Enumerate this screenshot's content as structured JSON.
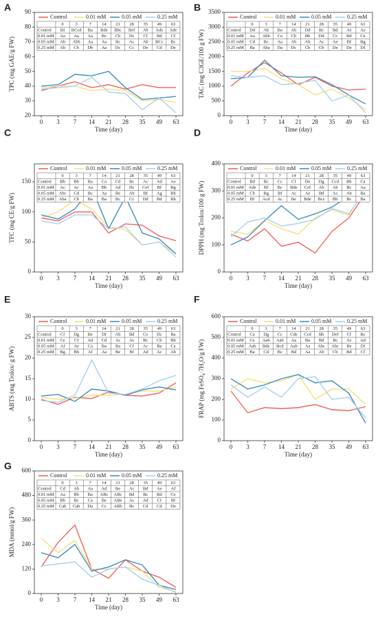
{
  "chart_data": [
    {
      "type": "line",
      "label": "A",
      "ylabel": "TPC (mg GAE/g FW)",
      "xlabel": "Time (day)",
      "categories": [
        "0",
        "3",
        "7",
        "14",
        "21",
        "28",
        "35",
        "49",
        "63"
      ],
      "ylim": [
        20,
        90
      ],
      "yticks": [
        20,
        30,
        40,
        50,
        60,
        70,
        80,
        90
      ],
      "series": [
        {
          "name": "Control",
          "color": "#f0625b",
          "values": [
            37,
            40,
            43,
            39,
            41,
            38,
            41,
            39,
            39
          ]
        },
        {
          "name": "0.01 mM",
          "color": "#f7df80",
          "values": [
            39,
            40,
            40,
            37,
            38,
            37,
            30,
            31,
            29
          ]
        },
        {
          "name": "0.05 mM",
          "color": "#3f8fc0",
          "values": [
            40,
            41,
            48,
            47,
            50,
            39,
            31,
            32,
            33
          ]
        },
        {
          "name": "0.25 mM",
          "color": "#a9d0ec",
          "values": [
            38,
            39,
            40,
            46,
            36,
            35,
            24,
            32,
            22
          ]
        }
      ],
      "letters": [
        [
          "Bf",
          "BCcd",
          "Ba",
          "Bde",
          "Bbc",
          "Bef",
          "Ab",
          "Ade",
          "Ade"
        ],
        [
          "Aa",
          "Aa",
          "Aa",
          "Bc",
          "Cb",
          "Dc",
          "Cf",
          "Bd",
          "Cf"
        ],
        [
          "Ab",
          "Abb",
          "Aa",
          "Aa",
          "Bc",
          "Ac",
          "Ab",
          "BCc",
          "Bc"
        ],
        [
          "Ab",
          "Cb",
          "Db",
          "Aa",
          "Dc",
          "Cc",
          "De",
          "Cd",
          "De"
        ]
      ]
    },
    {
      "type": "line",
      "label": "B",
      "ylabel": "TAC (mg C3GE/100 g FW)",
      "xlabel": "Time (day)",
      "categories": [
        "0",
        "3",
        "7",
        "14",
        "21",
        "28",
        "35",
        "49",
        "63"
      ],
      "ylim": [
        0,
        3500
      ],
      "yticks": [
        0,
        500,
        1000,
        1500,
        2000,
        2500,
        3000,
        3500
      ],
      "series": [
        {
          "name": "Control",
          "color": "#f0625b",
          "values": [
            1000,
            1450,
            1800,
            1450,
            1050,
            1300,
            1000,
            870,
            900
          ]
        },
        {
          "name": "0.01 mM",
          "color": "#f7df80",
          "values": [
            1500,
            1500,
            1600,
            1250,
            1050,
            700,
            900,
            600,
            200
          ]
        },
        {
          "name": "0.05 mM",
          "color": "#3f8fc0",
          "values": [
            1250,
            1300,
            1880,
            1350,
            1300,
            1320,
            1050,
            700,
            400
          ]
        },
        {
          "name": "0.25 mM",
          "color": "#a9d0ec",
          "values": [
            1350,
            1300,
            1350,
            1050,
            1100,
            1200,
            500,
            700,
            100
          ]
        }
      ],
      "letters": [
        [
          "Dd",
          "Ab",
          "Ba",
          "Ab",
          "Dd",
          "Bc",
          "Bd",
          "Ae",
          "Ae"
        ],
        [
          "Aa",
          "Abb",
          "Ca",
          "Cb",
          "Bb",
          "Dd",
          "Cc",
          "Bd",
          "Ce"
        ],
        [
          "Cd",
          "Bc",
          "Aa",
          "Ab",
          "Ab",
          "Ac",
          "Ae",
          "Bf",
          "Bg"
        ],
        [
          "Ba",
          "Aba",
          "Da",
          "Dc",
          "Cb",
          "Cb",
          "De",
          "De",
          "Df"
        ]
      ]
    },
    {
      "type": "line",
      "label": "C",
      "ylabel": "TFC (mg CE/g FW)",
      "xlabel": "Time (day)",
      "categories": [
        "0",
        "3",
        "7",
        "14",
        "21",
        "28",
        "35",
        "49",
        "63"
      ],
      "ylim": [
        0,
        180
      ],
      "yticks": [
        0,
        50,
        100,
        150
      ],
      "series": [
        {
          "name": "Control",
          "color": "#f0625b",
          "values": [
            90,
            85,
            100,
            100,
            65,
            80,
            78,
            60,
            52
          ]
        },
        {
          "name": "0.01 mM",
          "color": "#f7df80",
          "values": [
            90,
            100,
            120,
            105,
            75,
            70,
            45,
            50,
            30
          ]
        },
        {
          "name": "0.05 mM",
          "color": "#3f8fc0",
          "values": [
            95,
            88,
            105,
            140,
            72,
            125,
            65,
            55,
            30
          ]
        },
        {
          "name": "0.25 mM",
          "color": "#a9d0ec",
          "values": [
            85,
            80,
            95,
            95,
            72,
            75,
            45,
            50,
            25
          ]
        }
      ],
      "letters": [
        [
          "Bb",
          "Bb",
          "Ba",
          "Ca",
          "Cd",
          "Bc",
          "Ac",
          "Ad",
          "Ae"
        ],
        [
          "Ac",
          "Ac",
          "Aa",
          "Bb",
          "Ad",
          "Dc",
          "Cef",
          "Bf",
          "Bg"
        ],
        [
          "Abc",
          "Cd",
          "Bc",
          "Aa",
          "Be",
          "Ab",
          "Bf",
          "Ag",
          "Bh"
        ],
        [
          "Aba",
          "Cb",
          "Ba",
          "Ba",
          "Bc",
          "Cc",
          "Dd",
          "Bd",
          "Bh"
        ]
      ]
    },
    {
      "type": "line",
      "label": "D",
      "ylabel": "DPPH (mg Trolox/100 g FW)",
      "xlabel": "Time (day)",
      "categories": [
        "0",
        "3",
        "7",
        "14",
        "21",
        "28",
        "35",
        "49",
        "63"
      ],
      "ylim": [
        0,
        400
      ],
      "yticks": [
        0,
        100,
        200,
        300,
        400
      ],
      "series": [
        {
          "name": "Control",
          "color": "#f0625b",
          "values": [
            140,
            115,
            160,
            95,
            110,
            70,
            150,
            200,
            290
          ]
        },
        {
          "name": "0.01 mM",
          "color": "#f7df80",
          "values": [
            150,
            140,
            190,
            160,
            140,
            200,
            230,
            210,
            310
          ]
        },
        {
          "name": "0.05 mM",
          "color": "#3f8fc0",
          "values": [
            100,
            130,
            190,
            245,
            195,
            215,
            240,
            280,
            310
          ]
        },
        {
          "name": "0.25 mM",
          "color": "#a9d0ec",
          "values": [
            130,
            185,
            200,
            170,
            180,
            195,
            235,
            215,
            300
          ]
        }
      ],
      "letters": [
        [
          "Bd",
          "Bc",
          "Cc",
          "Cf",
          "De",
          "Dg",
          "Ccd",
          "Bb",
          "Ca"
        ],
        [
          "Ade",
          "Bf",
          "Bc",
          "Bde",
          "Cef",
          "Ab",
          "Ab",
          "Bc",
          "Aa"
        ],
        [
          "Cb",
          "Bg",
          "Bf",
          "Ac",
          "Ae",
          "Bd",
          "Ac",
          "Ab",
          "Ba"
        ],
        [
          "Bf",
          "Acd",
          "Ac",
          "Be",
          "Bde",
          "Bcc",
          "Bb",
          "Bc",
          "Ba"
        ]
      ]
    },
    {
      "type": "line",
      "label": "E",
      "ylabel": "ABTS (mg Trolox/ g FW)",
      "xlabel": "Time (day)",
      "categories": [
        "0",
        "3",
        "7",
        "14",
        "21",
        "28",
        "35",
        "49",
        "63"
      ],
      "ylim": [
        0,
        30
      ],
      "yticks": [
        0,
        5,
        10,
        15,
        20,
        25,
        30
      ],
      "series": [
        {
          "name": "Control",
          "color": "#f0625b",
          "values": [
            10,
            8.8,
            10.5,
            10.2,
            11.8,
            11,
            10.8,
            11.5,
            14
          ]
        },
        {
          "name": "0.01 mM",
          "color": "#f7df80",
          "values": [
            10.5,
            10,
            10.3,
            11,
            11,
            11.2,
            12,
            12,
            13
          ]
        },
        {
          "name": "0.05 mM",
          "color": "#3f8fc0",
          "values": [
            10.8,
            11.2,
            9.5,
            12.5,
            12,
            11,
            12.3,
            13,
            12.3
          ]
        },
        {
          "name": "0.25 mM",
          "color": "#a9d0ec",
          "values": [
            9.7,
            9.3,
            11,
            19.5,
            11.5,
            11.2,
            12.5,
            14.5,
            15.8
          ]
        }
      ],
      "letters": [
        [
          "Cf",
          "Dg",
          "Be",
          "Df",
          "Ab",
          "Bd",
          "Ce",
          "Dc",
          "Ba"
        ],
        [
          "Ce",
          "Cf",
          "Ad",
          "Cd",
          "Ac",
          "Ac",
          "Bc",
          "Cb",
          "Bb"
        ],
        [
          "Af",
          "Ae",
          "Ca",
          "Ba",
          "Ba",
          "Cf",
          "Ac",
          "Ba",
          "Ca"
        ],
        [
          "Bg",
          "Bh",
          "Af",
          "Aa",
          "Be",
          "Bf",
          "Ad",
          "Ac",
          "Ab"
        ]
      ]
    },
    {
      "type": "line",
      "label": "F",
      "ylabel": "FRAP (mg FeSO₄·7H₂O/g FW)",
      "xlabel": "Time (day)",
      "categories": [
        "0",
        "3",
        "7",
        "14",
        "21",
        "28",
        "35",
        "49",
        "63"
      ],
      "ylim": [
        0,
        600
      ],
      "yticks": [
        0,
        100,
        200,
        300,
        400,
        500,
        600
      ],
      "series": [
        {
          "name": "Control",
          "color": "#f0625b",
          "values": [
            240,
            135,
            160,
            155,
            160,
            175,
            150,
            145,
            165
          ]
        },
        {
          "name": "0.01 mM",
          "color": "#f7df80",
          "values": [
            250,
            300,
            280,
            290,
            320,
            200,
            250,
            250,
            175
          ]
        },
        {
          "name": "0.05 mM",
          "color": "#3f8fc0",
          "values": [
            300,
            250,
            270,
            300,
            320,
            280,
            290,
            230,
            85
          ]
        },
        {
          "name": "0.25 mM",
          "color": "#a9d0ec",
          "values": [
            270,
            210,
            260,
            210,
            300,
            310,
            200,
            210,
            110
          ]
        }
      ],
      "letters": [
        [
          "Ca",
          "Dg",
          "Cc",
          "Cde",
          "Ccd",
          "Bb",
          "Def",
          "Cf",
          "Bc"
        ],
        [
          "Ce",
          "Aab",
          "Aab",
          "Aa",
          "Ba",
          "Bd",
          "Bc",
          "Ac",
          "Ad"
        ],
        [
          "Aab",
          "Bde",
          "Bcd",
          "Aab",
          "Aa",
          "Abc",
          "Abc",
          "Be",
          "Df"
        ],
        [
          "Ba",
          "Cd",
          "Bc",
          "Bd",
          "Aa",
          "Ab",
          "Cb",
          "Bd",
          "Cf"
        ]
      ]
    },
    {
      "type": "line",
      "label": "G",
      "ylabel": "MDA (mmol/g FW)",
      "xlabel": "Time (day)",
      "categories": [
        "0",
        "3",
        "7",
        "14",
        "21",
        "28",
        "35",
        "49",
        "63"
      ],
      "ylim": [
        0,
        600
      ],
      "yticks": [
        0,
        120,
        240,
        360,
        480,
        600
      ],
      "series": [
        {
          "name": "Control",
          "color": "#f0625b",
          "values": [
            130,
            250,
            335,
            120,
            75,
            165,
            110,
            80,
            30
          ]
        },
        {
          "name": "0.01 mM",
          "color": "#f7df80",
          "values": [
            270,
            200,
            260,
            120,
            120,
            130,
            110,
            30,
            10
          ]
        },
        {
          "name": "0.05 mM",
          "color": "#3f8fc0",
          "values": [
            200,
            175,
            240,
            110,
            130,
            165,
            140,
            40,
            20
          ]
        },
        {
          "name": "0.25 mM",
          "color": "#a9d0ec",
          "values": [
            135,
            145,
            155,
            80,
            120,
            130,
            70,
            40,
            5
          ]
        }
      ],
      "letters": [
        [
          "Cd",
          "Ab",
          "Aa",
          "Ad",
          "Be",
          "Ac",
          "Bd",
          "Ae",
          "Af"
        ],
        [
          "Aa",
          "Bb",
          "Ba",
          "ABc",
          "ABc",
          "Bd",
          "Bc",
          "Bd",
          "Ce"
        ],
        [
          "Bb",
          "Bc",
          "Ca",
          "Be",
          "ABe",
          "Ac",
          "Ad",
          "Cf",
          "Bf"
        ],
        [
          "Cab",
          "Cab",
          "Da",
          "Cc",
          "ABb",
          "Bc",
          "Cd",
          "Cd",
          "De"
        ]
      ]
    }
  ]
}
